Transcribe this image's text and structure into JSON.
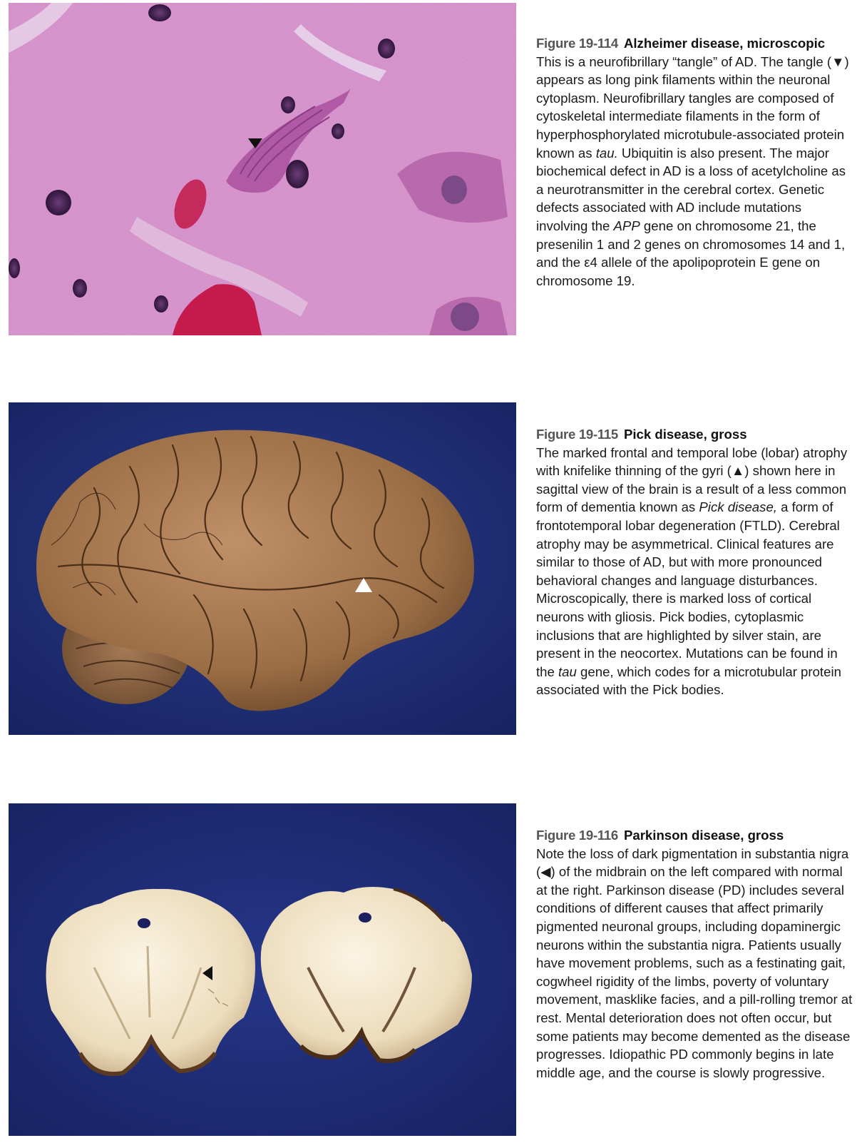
{
  "figures": [
    {
      "number": "Figure 19-114",
      "title": "Alzheimer disease, microscopic",
      "arrow_glyph": "▼",
      "segments": [
        "This is a neurofibrillary “tangle” of AD. The tangle (",
        "▼",
        ") appears as long pink filaments within the neuronal cytoplasm. Neurofibrillary tangles are composed of cytoskeletal intermediate filaments in the form of hyperphosphorylated microtubule-associated protein known as ",
        "tau.",
        " Ubiquitin is also present. The major biochemical defect in AD is a loss of acetylcholine as a neurotransmitter in the cerebral cortex. Genetic defects associated with AD include mutations involving the ",
        "APP",
        " gene on chromosome 21, the presenilin 1 and 2 genes on chromosomes 14 and 1, and the ε4 allele of the apolipoprotein E gene on chromosome 19."
      ]
    },
    {
      "number": "Figure 19-115",
      "title": "Pick disease, gross",
      "arrow_glyph": "▲",
      "segments": [
        "The marked frontal and temporal lobe (lobar) atrophy with knifelike thinning of the gyri (",
        "▲",
        ") shown here in sagittal view of the brain is a result of a less common form of dementia known as ",
        "Pick disease,",
        " a form of frontotemporal lobar degeneration (FTLD). Cerebral atrophy may be asymmetrical. Clinical features are similar to those of AD, but with more pronounced behavioral changes and language disturbances. Microscopically, there is marked loss of cortical neurons with gliosis. Pick bodies, cytoplasmic inclusions that are highlighted by silver stain, are present in the neocortex. Mutations can be found in the ",
        "tau",
        " gene, which codes for a microtubular protein associated with the Pick bodies."
      ]
    },
    {
      "number": "Figure 19-116",
      "title": "Parkinson disease, gross",
      "arrow_glyph": "◀",
      "segments": [
        "Note the loss of dark pigmentation in substantia nigra (",
        "◀",
        ") of the midbrain on the left compared with normal at the right. Parkinson disease (PD) includes several conditions of different causes that affect primarily pigmented neuronal groups, including dopaminergic neurons within the substantia nigra. Patients usually have movement problems, such as a festinating gait, cogwheel rigidity of the limbs, poverty of voluntary movement, masklike facies, and a pill-rolling tremor at rest. Mental deterioration does not often occur, but some patients may become demented as the disease progresses. Idiopathic PD commonly begins in late middle age, and the course is slowly progressive."
      ]
    }
  ],
  "colors": {
    "histology_bg": "#d18cc5",
    "specimen_bg": "#1c2a6e",
    "brain": "#a8784e",
    "midbrain": "#efe6cf"
  }
}
